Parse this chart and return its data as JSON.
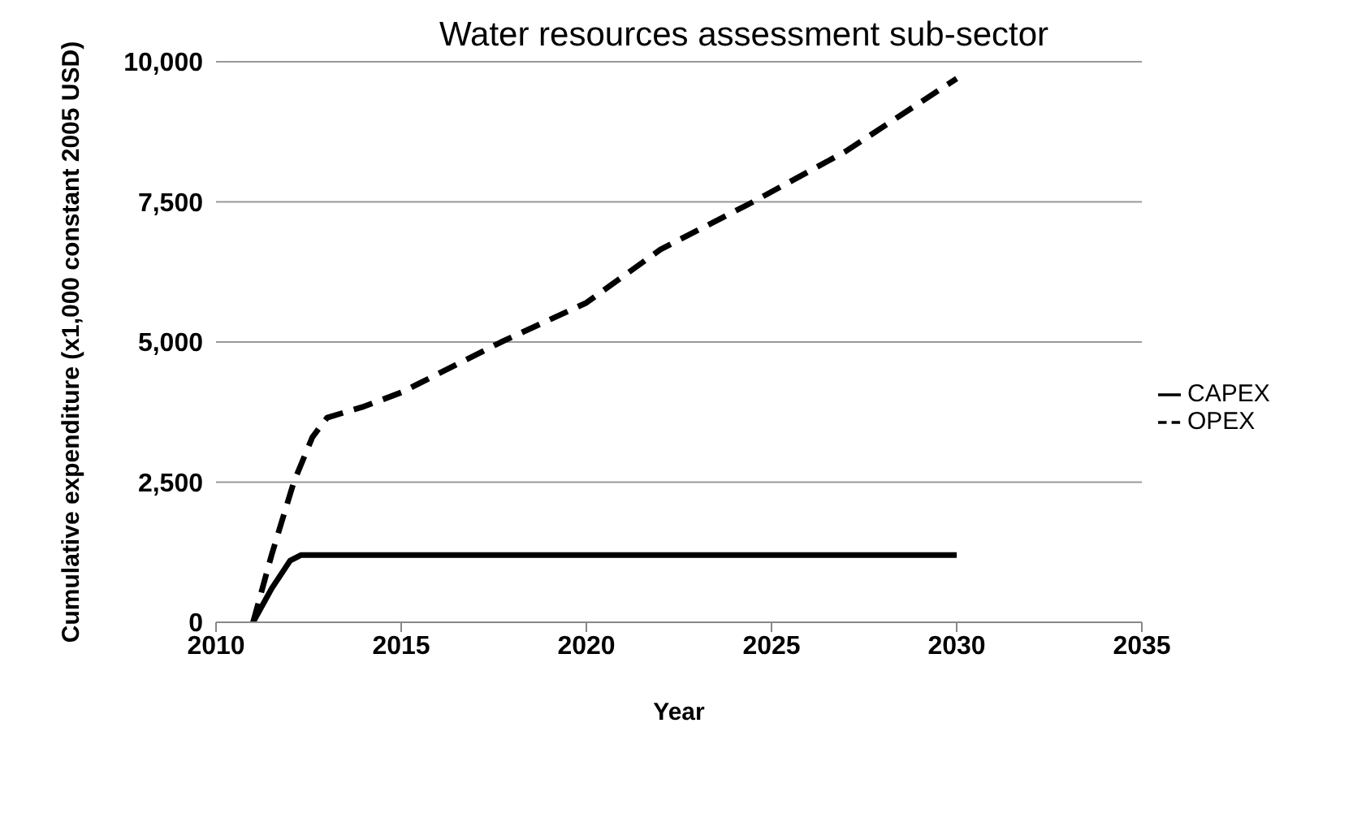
{
  "chart_data": {
    "type": "line",
    "title": "Water resources assessment sub-sector",
    "xlabel": "Year",
    "ylabel": "Cumulative expenditure  (x1,000 constant 2005 USD)",
    "xlim": [
      2010,
      2035
    ],
    "xticks": [
      2010,
      2015,
      2020,
      2025,
      2030,
      2035
    ],
    "ylim": [
      0,
      10000
    ],
    "yticks": [
      {
        "value": 0,
        "label": "0"
      },
      {
        "value": 2500,
        "label": "2,500"
      },
      {
        "value": 5000,
        "label": "5,000"
      },
      {
        "value": 7500,
        "label": "7,500"
      },
      {
        "value": 10000,
        "label": "10,000"
      }
    ],
    "grid": "y",
    "legend": "right",
    "marker": "none",
    "series": [
      {
        "name": "CAPEX",
        "color": "#000000",
        "line_style": "solid",
        "x": [
          2011,
          2011.5,
          2012,
          2012.3,
          2015,
          2020,
          2025,
          2030
        ],
        "values": [
          0,
          600,
          1100,
          1200,
          1200,
          1200,
          1200,
          1200
        ]
      },
      {
        "name": "OPEX",
        "color": "#000000",
        "line_style": "dashed",
        "x": [
          2011,
          2011.5,
          2012.1,
          2012.6,
          2013,
          2014,
          2015,
          2017.7,
          2020,
          2022,
          2024.5,
          2027,
          2030
        ],
        "values": [
          0,
          1200,
          2500,
          3300,
          3650,
          3850,
          4100,
          5000,
          5700,
          6650,
          7500,
          8400,
          9700
        ]
      }
    ]
  }
}
